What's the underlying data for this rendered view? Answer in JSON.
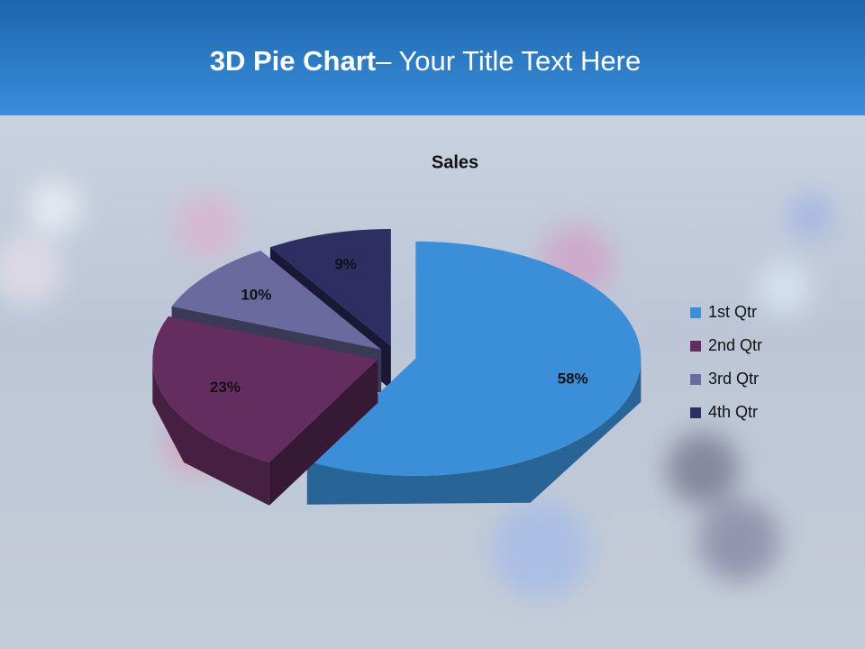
{
  "slide": {
    "title_bold": "3D Pie Chart",
    "title_rest": "– Your Title Text Here"
  },
  "chart_data": {
    "type": "pie",
    "title": "Sales",
    "categories": [
      "1st Qtr",
      "2nd Qtr",
      "3rd Qtr",
      "4th Qtr"
    ],
    "values": [
      58,
      23,
      10,
      9
    ],
    "value_labels": [
      "58%",
      "23%",
      "10%",
      "9%"
    ],
    "colors": [
      "#3a8fd8",
      "#632e5f",
      "#6a6a9e",
      "#2e2e62"
    ],
    "legend": "right"
  }
}
